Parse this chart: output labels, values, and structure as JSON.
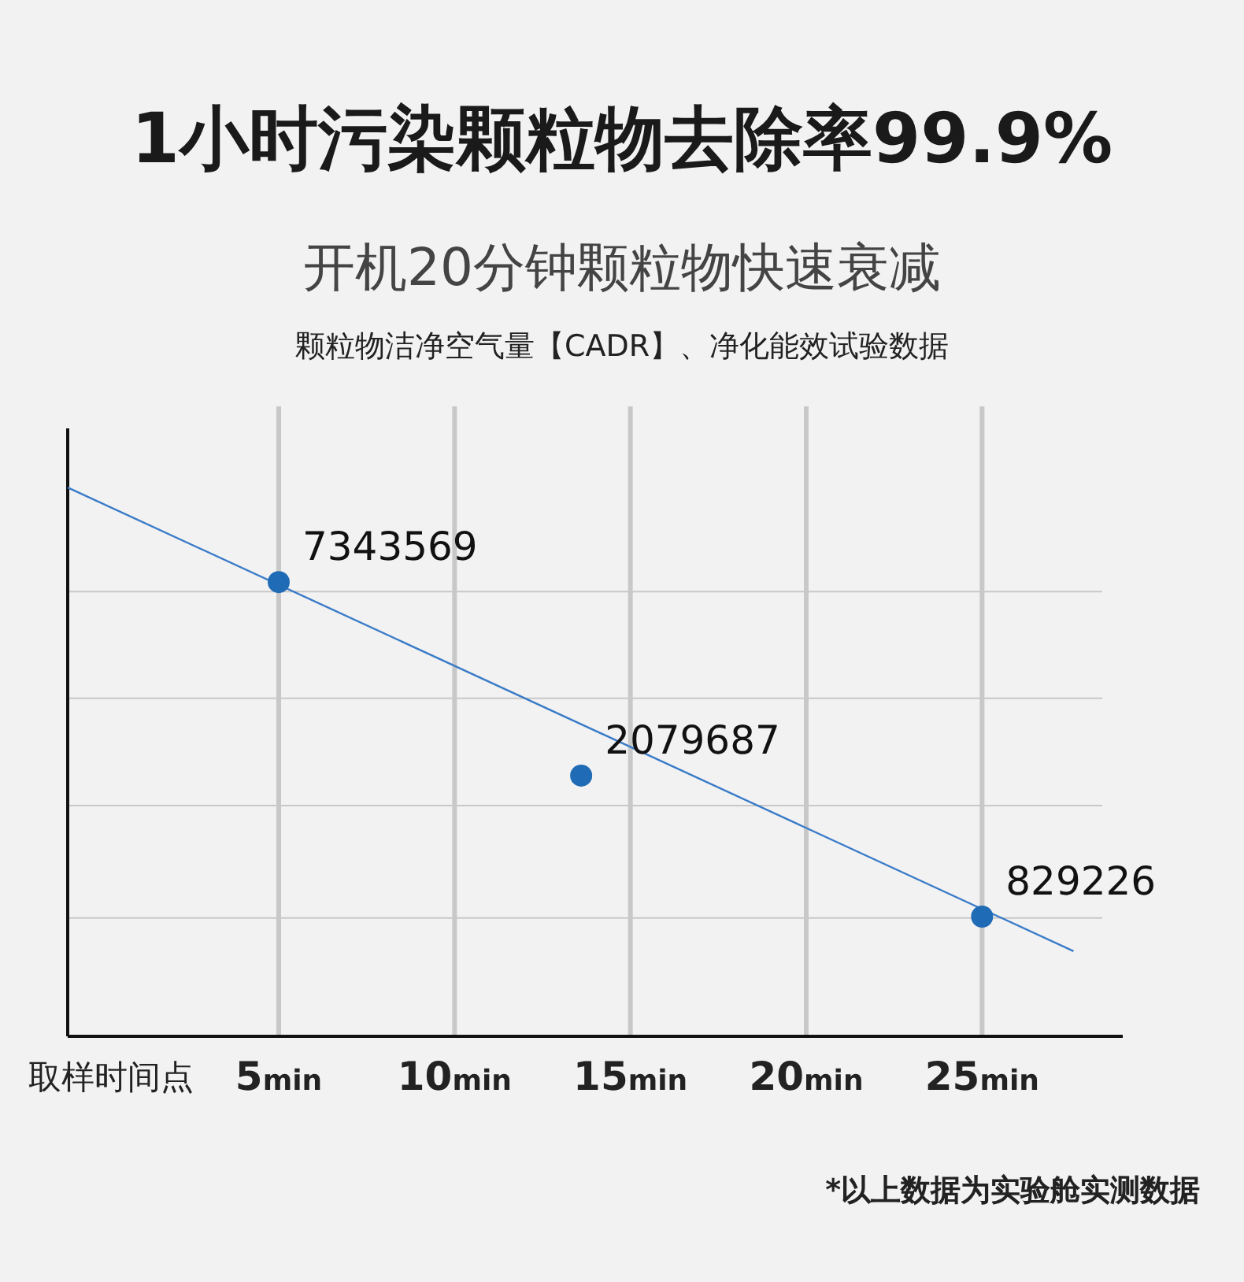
{
  "chart_data": {
    "type": "scatter",
    "title": "1小时污染颗粒物去除率99.9%",
    "subtitle": "开机20分钟颗粒物快速衰减",
    "annotations": [
      "颗粒物洁净空气量【CADR】、净化能效试验数据",
      "*以上数据为实验舱实测数据"
    ],
    "xlabel": "取样时间点",
    "series": [
      {
        "type": "line",
        "marker": "none",
        "color": "#3a7bc8",
        "x": [
          -1,
          27.6
        ],
        "values": [
          13600000,
          662000
        ]
      },
      {
        "type": "scatter",
        "color": "#1f6bb5",
        "x": [
          5,
          13.6,
          25
        ],
        "values": [
          7343569,
          2079687,
          829226
        ],
        "value_labels": [
          "7343569",
          "2079687",
          "829226"
        ]
      }
    ],
    "xlim": [
      -1,
      29
    ],
    "ylim": [
      380000,
      20000000
    ],
    "log": "y",
    "xticks": [
      {
        "value": 5,
        "label": "5$_{min}$"
      },
      {
        "value": 10,
        "label": "10$_{min}$"
      },
      {
        "value": 15,
        "label": "15$_{min}$"
      },
      {
        "value": 20,
        "label": "20$_{min}$"
      },
      {
        "value": 25,
        "label": "25$_{min}$"
      }
    ],
    "yticks": [
      {
        "value": 822000,
        "label": null
      },
      {
        "value": 1710000,
        "label": null
      },
      {
        "value": 3440000,
        "label": null
      },
      {
        "value": 6900000,
        "label": null
      }
    ],
    "tick_labels": "x",
    "grid": true,
    "marker": "circle"
  }
}
